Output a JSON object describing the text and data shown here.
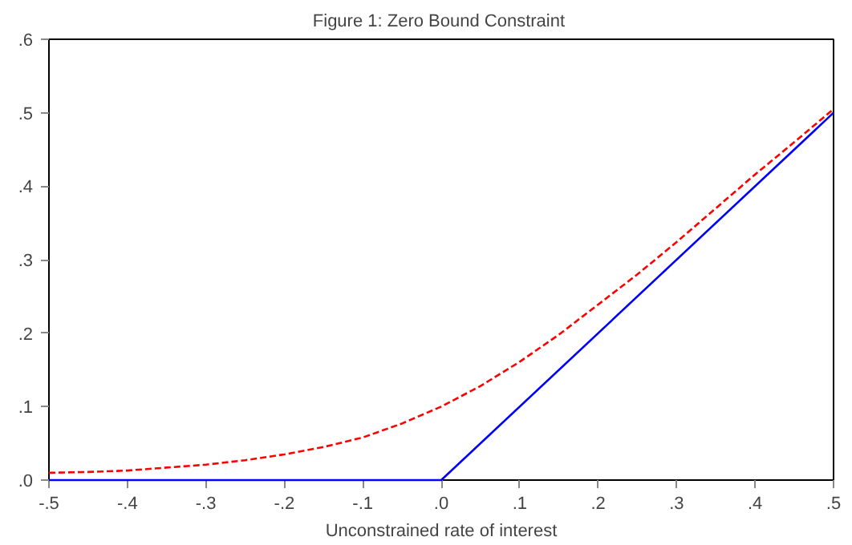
{
  "chart_data": {
    "type": "line",
    "title": "Figure 1:  Zero Bound Constraint",
    "xlabel": "Unconstrained rate of interest",
    "xlim": [
      -0.5,
      0.5
    ],
    "ylim": [
      0,
      0.6
    ],
    "xticks": [
      {
        "value": -0.5,
        "label": "-.5"
      },
      {
        "value": -0.4,
        "label": "-.4"
      },
      {
        "value": -0.3,
        "label": "-.3"
      },
      {
        "value": -0.2,
        "label": "-.2"
      },
      {
        "value": -0.1,
        "label": "-.1"
      },
      {
        "value": 0,
        "label": ".0"
      },
      {
        "value": 0.1,
        "label": ".1"
      },
      {
        "value": 0.2,
        "label": ".2"
      },
      {
        "value": 0.3,
        "label": ".3"
      },
      {
        "value": 0.4,
        "label": ".4"
      },
      {
        "value": 0.5,
        "label": ".5"
      }
    ],
    "yticks": [
      {
        "value": 0,
        "label": ".0"
      },
      {
        "value": 0.1,
        "label": ".1"
      },
      {
        "value": 0.2,
        "label": ".2"
      },
      {
        "value": 0.3,
        "label": ".3"
      },
      {
        "value": 0.4,
        "label": ".4"
      },
      {
        "value": 0.5,
        "label": ".5"
      },
      {
        "value": 0.6,
        "label": ".6"
      }
    ],
    "grid": false,
    "marker": "none",
    "series": [
      {
        "color": "#ff0000",
        "line_style": "dashed",
        "x": [
          -0.5,
          -0.45,
          -0.4,
          -0.35,
          -0.3,
          -0.25,
          -0.2,
          -0.15,
          -0.1,
          -0.05,
          0,
          0.05,
          0.1,
          0.15,
          0.2,
          0.25,
          0.3,
          0.35,
          0.4,
          0.45,
          0.5
        ],
        "values": [
          0.01,
          0.011,
          0.013,
          0.017,
          0.021,
          0.027,
          0.035,
          0.045,
          0.058,
          0.077,
          0.1,
          0.128,
          0.161,
          0.198,
          0.239,
          0.28,
          0.324,
          0.37,
          0.416,
          0.46,
          0.505
        ]
      },
      {
        "color": "#0000ff",
        "line_style": "solid",
        "x": [
          -0.5,
          0,
          0.5
        ],
        "values": [
          0,
          0,
          0.5
        ]
      }
    ]
  }
}
